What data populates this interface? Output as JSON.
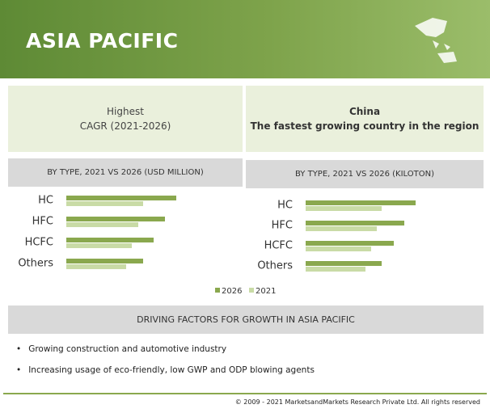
{
  "header": {
    "title": "ASIA PACIFIC"
  },
  "highlights": [
    {
      "lines": [
        "Highest",
        "CAGR (2021-2026)"
      ]
    },
    {
      "lines": [
        "China",
        "The fastest growing country in the region"
      ]
    }
  ],
  "chart_data": [
    {
      "type": "hbar",
      "title": "BY TYPE, 2021 VS 2026 (USD MILLION)",
      "categories": [
        "HC",
        "HFC",
        "HCFC",
        "Others"
      ],
      "xlim": [
        0,
        150
      ],
      "series": [
        {
          "name": "2026",
          "color": "#8aa84e",
          "values": [
            136,
            122,
            108,
            95
          ]
        },
        {
          "name": "2021",
          "color": "#c9dba6",
          "values": [
            95,
            89,
            81,
            74
          ]
        }
      ]
    },
    {
      "type": "hbar",
      "title": "BY TYPE, 2021 VS 2026 (KILOTON)",
      "categories": [
        "HC",
        "HFC",
        "HCFC",
        "Others"
      ],
      "xlim": [
        0,
        150
      ],
      "series": [
        {
          "name": "2026",
          "color": "#8aa84e",
          "values": [
            136,
            122,
            109,
            94
          ]
        },
        {
          "name": "2021",
          "color": "#c9dba6",
          "values": [
            94,
            88,
            81,
            74
          ]
        }
      ]
    }
  ],
  "drivers": {
    "title": "DRIVING FACTORS FOR GROWTH IN ASIA PACIFIC",
    "items": [
      "Growing construction and automotive industry",
      "Increasing usage of eco-friendly, low GWP and ODP blowing agents"
    ]
  },
  "footer": {
    "text": "© 2009 - 2021 MarketsandMarkets Research Private Ltd. All rights reserved"
  }
}
